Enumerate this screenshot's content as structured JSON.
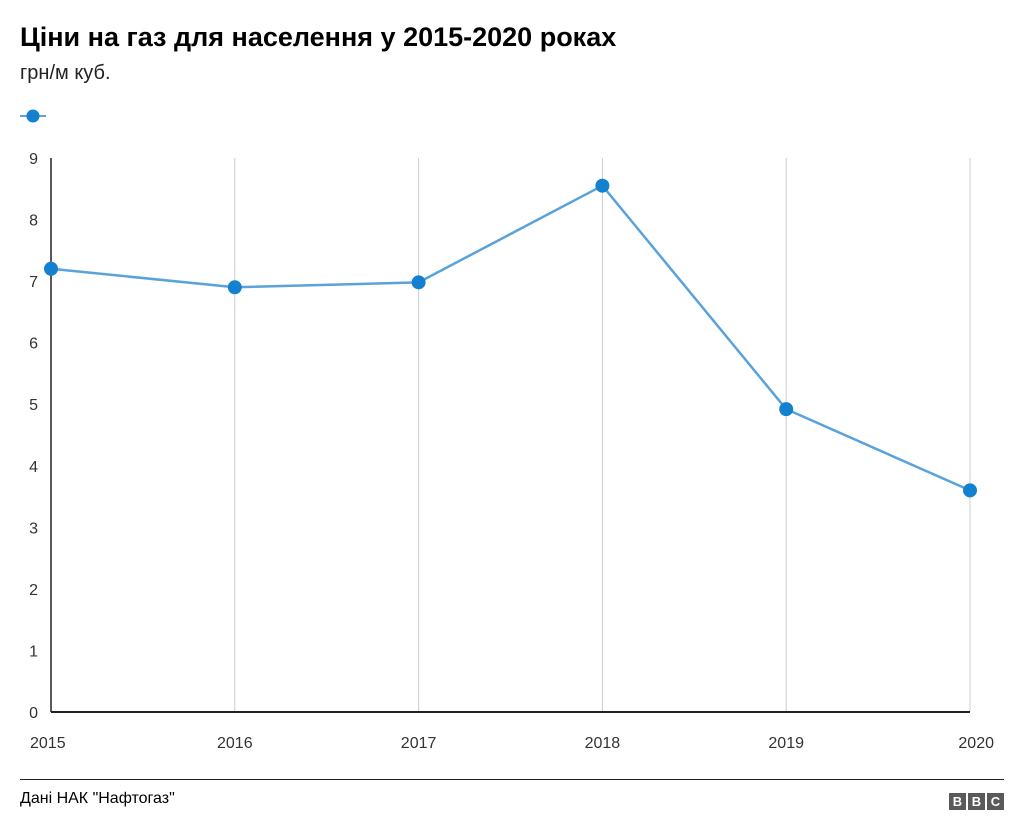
{
  "header": {
    "title": "Ціни на газ для населення у 2015-2020 роках",
    "subtitle": "грн/м куб."
  },
  "colors": {
    "series": "#5aa2da",
    "marker": "#1380d0",
    "grid": "#cccccc",
    "baseline": "#222222"
  },
  "chart_data": {
    "type": "line",
    "title": "Ціни на газ для населення у 2015-2020 роках",
    "subtitle": "грн/м куб.",
    "xlabel": "",
    "ylabel": "",
    "x": [
      "2015",
      "2016",
      "2017",
      "2018",
      "2019",
      "2020"
    ],
    "series": [
      {
        "values": [
          7.2,
          6.9,
          6.98,
          8.55,
          4.92,
          3.6
        ]
      }
    ],
    "ylim": [
      0,
      9
    ],
    "yticks": [
      "0",
      "1",
      "2",
      "3",
      "4",
      "5",
      "6",
      "7",
      "8",
      "9"
    ],
    "grid": "vertical",
    "legend": "top-left"
  },
  "footer": {
    "source": "Дані НАК \"Нафтогаз\"",
    "logo": [
      "B",
      "B",
      "C"
    ]
  }
}
